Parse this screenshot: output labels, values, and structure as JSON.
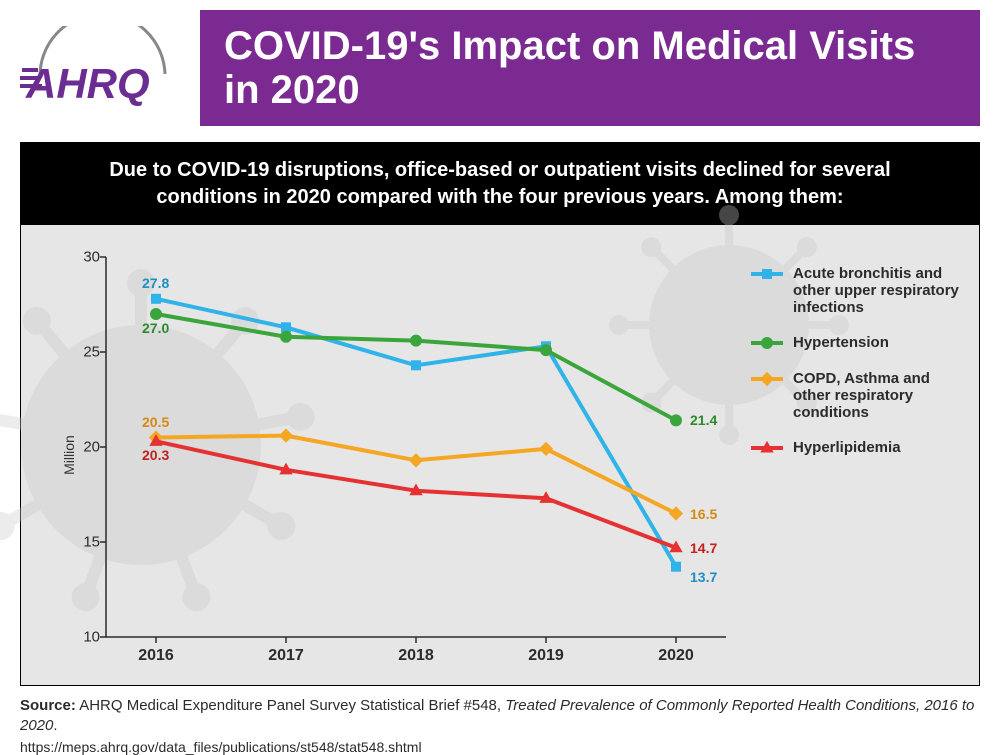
{
  "header": {
    "logo_text": "AHRQ",
    "logo_color": "#6b2d91",
    "title": "COVID-19's Impact on Medical Visits in 2020",
    "title_bg": "#7a2a90",
    "title_color": "#ffffff"
  },
  "subtitle": "Due to COVID-19 disruptions, office-based or outpatient visits declined for several conditions in 2020 compared with the four previous years. Among them:",
  "chart": {
    "type": "line",
    "background": "#e6e6e6",
    "virus_bg_color": "#c9c9c9",
    "ylabel": "Million",
    "ylim": [
      10,
      30
    ],
    "ytick_step": 5,
    "yticks": [
      10,
      15,
      20,
      25,
      30
    ],
    "x_categories": [
      "2016",
      "2017",
      "2018",
      "2019",
      "2020"
    ],
    "line_width": 4,
    "marker_size": 10,
    "axis_color": "#2b2b2b",
    "tick_fontsize": 15,
    "category_fontsize": 16,
    "series": [
      {
        "name": "Acute bronchitis and other upper respiratory infections",
        "color": "#2fb3e8",
        "marker": "square",
        "values": [
          27.8,
          26.3,
          24.3,
          25.3,
          13.7
        ],
        "start_label": "27.8",
        "start_label_color": "#1f8fc0",
        "end_label": "13.7",
        "end_label_color": "#1f8fc0"
      },
      {
        "name": "Hypertension",
        "color": "#3aa53a",
        "marker": "circle",
        "values": [
          27.0,
          25.8,
          25.6,
          25.1,
          21.4
        ],
        "start_label": "27.0",
        "start_label_color": "#2c8a2c",
        "end_label": "21.4",
        "end_label_color": "#2c8a2c"
      },
      {
        "name": "COPD, Asthma and other respiratory conditions",
        "color": "#f5a623",
        "marker": "diamond",
        "values": [
          20.5,
          20.6,
          19.3,
          19.9,
          16.5
        ],
        "start_label": "20.5",
        "start_label_color": "#d68b10",
        "end_label": "16.5",
        "end_label_color": "#d68b10"
      },
      {
        "name": "Hyperlipidemia",
        "color": "#e53131",
        "marker": "triangle",
        "values": [
          20.3,
          18.8,
          17.7,
          17.3,
          14.7
        ],
        "start_label": "20.3",
        "start_label_color": "#c51e1e",
        "end_label": "14.7",
        "end_label_color": "#c51e1e"
      }
    ],
    "legend_fontsize": 15
  },
  "source": {
    "label": "Source:",
    "text_plain": " AHRQ Medical Expenditure Panel Survey Statistical Brief #548, ",
    "text_italic": "Treated Prevalence of Commonly Reported Health Conditions, 2016 to 2020",
    "period": ".",
    "url": "https://meps.ahrq.gov/data_files/publications/st548/stat548.shtml"
  }
}
